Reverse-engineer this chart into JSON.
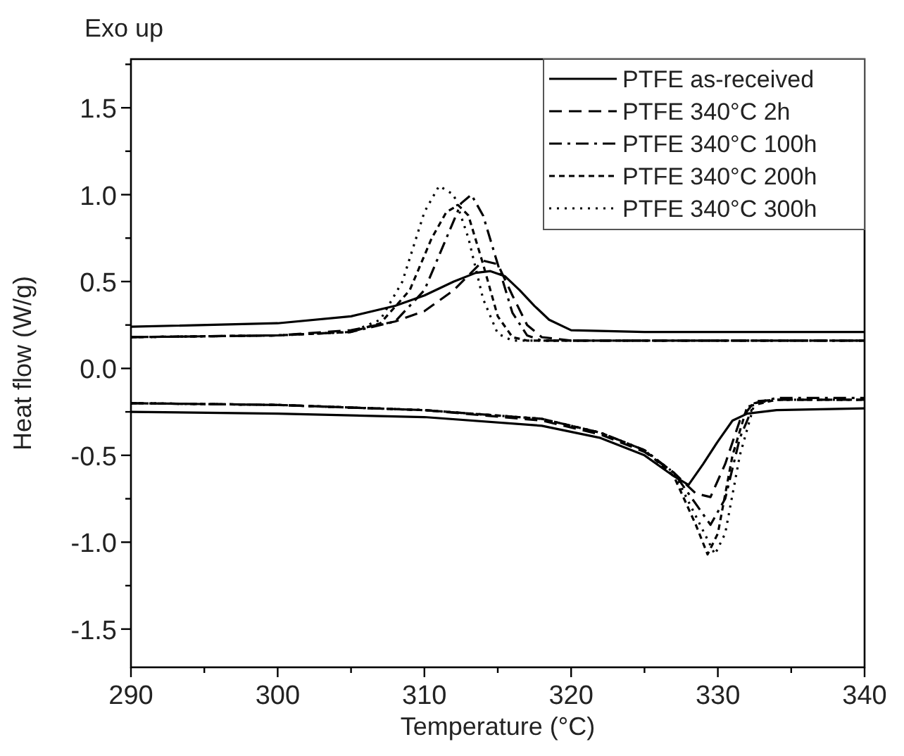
{
  "chart_data": {
    "type": "line",
    "xlabel": "Temperature (°C)",
    "ylabel": "Heat flow (W/g)",
    "annotations": [
      "Exo up"
    ],
    "xlim": [
      290,
      340
    ],
    "xticks": [
      290,
      {
        "value": 295,
        "label": null
      },
      300,
      {
        "value": 305,
        "label": null
      },
      310,
      {
        "value": 315,
        "label": null
      },
      320,
      {
        "value": 325,
        "label": null
      },
      330,
      {
        "value": 335,
        "label": null
      },
      340
    ],
    "ylim": [
      -1.72,
      1.78
    ],
    "yticks": [
      -1.5,
      {
        "value": -1.25,
        "label": null
      },
      {
        "value": -1,
        "label": "-1.0"
      },
      {
        "value": -0.75,
        "label": null
      },
      -0.5,
      {
        "value": -0.25,
        "label": null
      },
      {
        "value": 0,
        "label": "0.0"
      },
      {
        "value": 0.25,
        "label": null
      },
      0.5,
      {
        "value": 0.75,
        "label": null
      },
      {
        "value": 1,
        "label": "1.0"
      },
      {
        "value": 1.25,
        "label": null
      },
      1.5,
      {
        "value": 1.75,
        "label": null
      }
    ],
    "grid": false,
    "legend": "top right",
    "series": [
      {
        "name": "PTFE as-received",
        "color": "#000000",
        "line_style": "solid",
        "x": [
          290,
          300,
          305,
          308,
          310,
          312,
          313.5,
          314.5,
          315.5,
          316.5,
          317.5,
          318.5,
          320,
          325,
          340
        ],
        "values": [
          0.24,
          0.26,
          0.3,
          0.36,
          0.42,
          0.5,
          0.55,
          0.56,
          0.53,
          0.45,
          0.36,
          0.28,
          0.22,
          0.21,
          0.21
        ]
      },
      {
        "name": "PTFE 340°C 2h",
        "color": "#000000",
        "line_style": "dashed",
        "x": [
          290,
          300,
          305,
          308,
          310,
          312,
          314,
          315,
          316,
          317,
          318,
          320,
          325,
          340
        ],
        "values": [
          0.18,
          0.19,
          0.22,
          0.27,
          0.33,
          0.45,
          0.62,
          0.6,
          0.42,
          0.25,
          0.18,
          0.16,
          0.16,
          0.16
        ]
      },
      {
        "name": "PTFE 340°C 100h",
        "color": "#000000",
        "line_style": "dashdot",
        "x": [
          290,
          300,
          305,
          308,
          310,
          311.5,
          312.5,
          313.2,
          314,
          315,
          316,
          317,
          318,
          320,
          340
        ],
        "values": [
          0.18,
          0.19,
          0.21,
          0.27,
          0.45,
          0.75,
          0.95,
          1.0,
          0.88,
          0.6,
          0.32,
          0.19,
          0.16,
          0.16,
          0.16
        ]
      },
      {
        "name": "PTFE 340°C 200h",
        "color": "#000000",
        "line_style": "shortdash",
        "x": [
          290,
          300,
          305,
          307,
          309,
          310.5,
          311.5,
          312.3,
          313,
          314,
          315,
          316,
          317,
          318,
          340
        ],
        "values": [
          0.18,
          0.19,
          0.21,
          0.26,
          0.45,
          0.75,
          0.9,
          0.94,
          0.88,
          0.6,
          0.3,
          0.18,
          0.16,
          0.16,
          0.16
        ]
      },
      {
        "name": "PTFE 340°C 300h",
        "color": "#000000",
        "line_style": "dotted",
        "x": [
          290,
          300,
          305,
          307,
          308.5,
          310,
          311,
          312,
          313,
          314,
          315,
          316,
          318,
          340
        ],
        "values": [
          0.18,
          0.19,
          0.21,
          0.28,
          0.5,
          0.9,
          1.05,
          1.0,
          0.75,
          0.4,
          0.2,
          0.16,
          0.16,
          0.16
        ]
      },
      {
        "color": "#000000",
        "line_style": "solid",
        "x": [
          290,
          300,
          310,
          318,
          322,
          325,
          327,
          328,
          329,
          330,
          331,
          332,
          334,
          340
        ],
        "values": [
          -0.25,
          -0.26,
          -0.28,
          -0.33,
          -0.4,
          -0.5,
          -0.62,
          -0.67,
          -0.55,
          -0.42,
          -0.3,
          -0.26,
          -0.24,
          -0.23
        ]
      },
      {
        "color": "#000000",
        "line_style": "dashed",
        "x": [
          290,
          300,
          310,
          318,
          322,
          325,
          327,
          328.5,
          329.5,
          330.5,
          331.5,
          332.5,
          334,
          340
        ],
        "values": [
          -0.2,
          -0.21,
          -0.24,
          -0.3,
          -0.38,
          -0.48,
          -0.6,
          -0.72,
          -0.74,
          -0.55,
          -0.3,
          -0.19,
          -0.18,
          -0.18
        ]
      },
      {
        "color": "#000000",
        "line_style": "dashdot",
        "x": [
          290,
          300,
          310,
          318,
          322,
          325,
          327,
          328.5,
          329.5,
          330.5,
          331.5,
          332.5,
          334,
          340
        ],
        "values": [
          -0.2,
          -0.21,
          -0.24,
          -0.29,
          -0.37,
          -0.47,
          -0.6,
          -0.78,
          -0.9,
          -0.75,
          -0.4,
          -0.2,
          -0.17,
          -0.17
        ]
      },
      {
        "color": "#000000",
        "line_style": "shortdash",
        "x": [
          290,
          300,
          310,
          318,
          322,
          325,
          327,
          328.5,
          329.3,
          330,
          331,
          332,
          334,
          340
        ],
        "values": [
          -0.2,
          -0.21,
          -0.24,
          -0.29,
          -0.37,
          -0.47,
          -0.62,
          -0.9,
          -1.07,
          -0.95,
          -0.5,
          -0.22,
          -0.18,
          -0.18
        ]
      },
      {
        "color": "#000000",
        "line_style": "dotted",
        "x": [
          290,
          300,
          310,
          318,
          322,
          325,
          327,
          328.5,
          329.8,
          330.5,
          331.5,
          332.5,
          334,
          340
        ],
        "values": [
          -0.2,
          -0.21,
          -0.24,
          -0.29,
          -0.37,
          -0.47,
          -0.6,
          -0.85,
          -1.07,
          -0.95,
          -0.5,
          -0.2,
          -0.18,
          -0.18
        ]
      }
    ]
  }
}
